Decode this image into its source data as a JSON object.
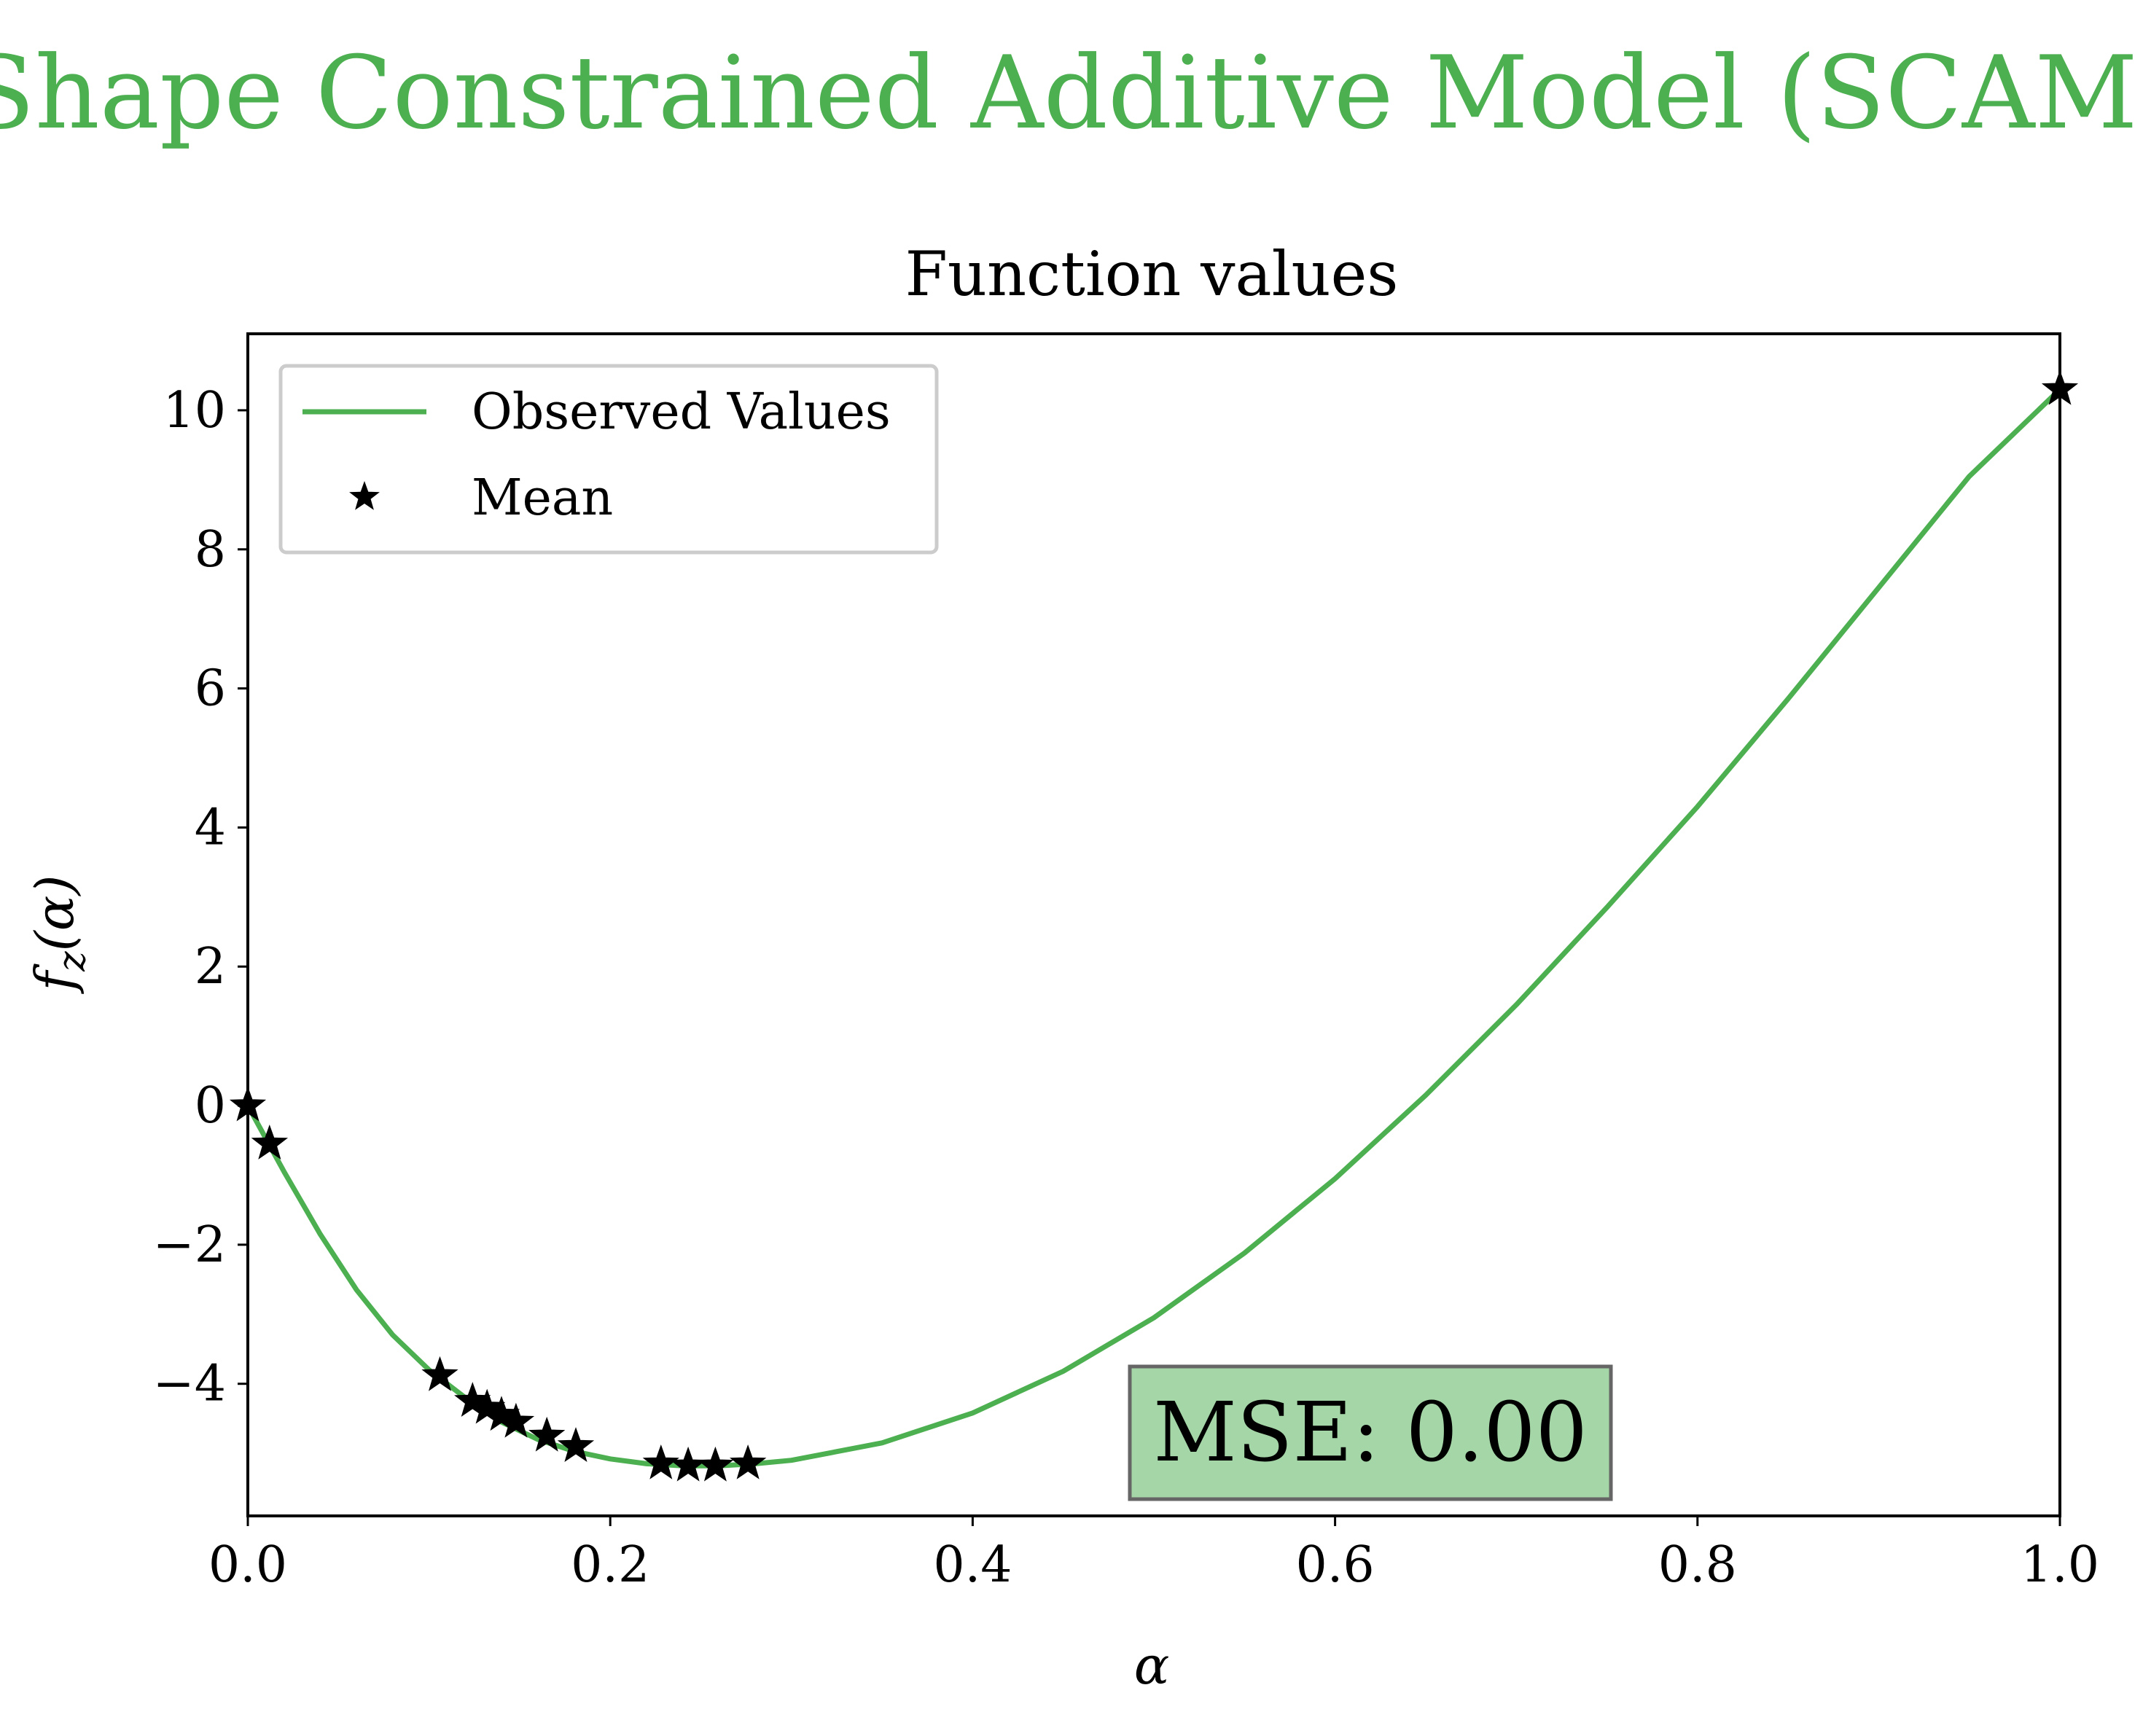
{
  "figure": {
    "suptitle": "Shape Constrained Additive Model (SCAM)",
    "suptitle_color": "#4caf50"
  },
  "chart_data": {
    "type": "line",
    "title": "Function values",
    "xlabel": "α",
    "ylabel": "f_z(α)",
    "ylabel_main": "f",
    "ylabel_sub": "z",
    "ylabel_arg": "(α)",
    "xlim": [
      0.0,
      1.0
    ],
    "ylim": [
      -5.9,
      11.1
    ],
    "xticks": [
      0.0,
      0.2,
      0.4,
      0.6,
      0.8,
      1.0
    ],
    "xtick_labels": [
      "0.0",
      "0.2",
      "0.4",
      "0.6",
      "0.8",
      "1.0"
    ],
    "yticks": [
      -4,
      -2,
      0,
      2,
      4,
      6,
      8,
      10
    ],
    "ytick_labels": [
      "−4",
      "−2",
      "0",
      "2",
      "4",
      "6",
      "8",
      "10"
    ],
    "grid": false,
    "legend_position": "upper-left",
    "series": [
      {
        "name": "Observed Values",
        "kind": "line",
        "color": "#4caf50",
        "x": [
          0.0,
          0.02,
          0.04,
          0.06,
          0.08,
          0.1,
          0.12,
          0.14,
          0.16,
          0.18,
          0.2,
          0.22,
          0.24,
          0.26,
          0.28,
          0.3,
          0.35,
          0.4,
          0.45,
          0.5,
          0.55,
          0.6,
          0.65,
          0.7,
          0.75,
          0.8,
          0.85,
          0.9,
          0.95,
          1.0
        ],
        "y": [
          0.0,
          -0.95,
          -1.85,
          -2.65,
          -3.3,
          -3.8,
          -4.2,
          -4.55,
          -4.8,
          -4.97,
          -5.08,
          -5.15,
          -5.18,
          -5.18,
          -5.15,
          -5.1,
          -4.85,
          -4.42,
          -3.82,
          -3.05,
          -2.12,
          -1.05,
          0.15,
          1.45,
          2.85,
          4.3,
          5.85,
          7.45,
          9.05,
          10.3
        ]
      },
      {
        "name": "Mean",
        "kind": "marker",
        "marker": "star",
        "color": "#000000",
        "x": [
          0.0,
          0.012,
          0.106,
          0.124,
          0.132,
          0.14,
          0.148,
          0.165,
          0.181,
          0.228,
          0.243,
          0.258,
          0.276,
          1.0
        ],
        "y": [
          0.0,
          -0.55,
          -3.88,
          -4.25,
          -4.35,
          -4.45,
          -4.55,
          -4.75,
          -4.9,
          -5.15,
          -5.18,
          -5.18,
          -5.15,
          10.3
        ]
      }
    ],
    "annotations": [
      {
        "text": "MSE: 0.00",
        "position": "bottom-center",
        "box_color": "#a5d6a7",
        "border_color": "#666666"
      }
    ]
  }
}
